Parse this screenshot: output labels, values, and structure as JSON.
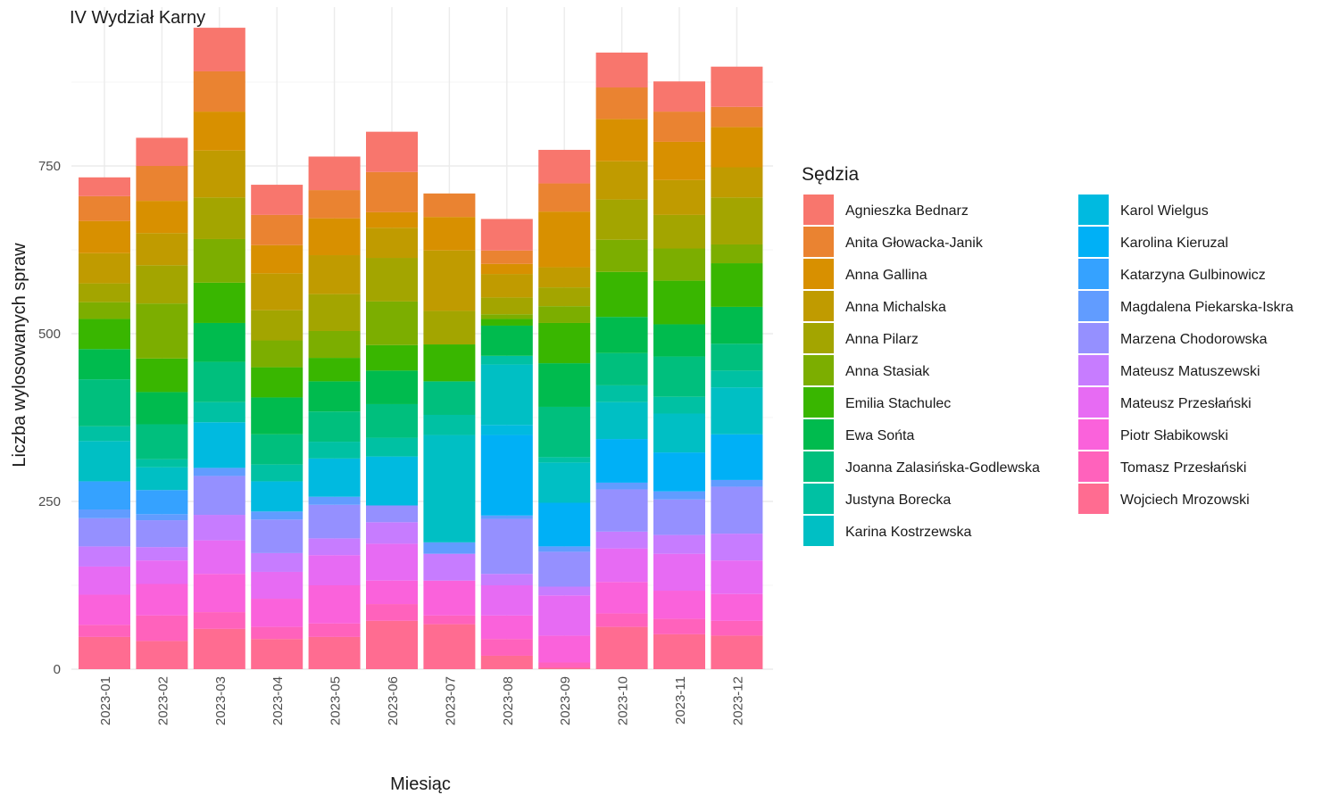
{
  "chart_data": {
    "type": "bar",
    "stacked": true,
    "title": "IV Wydział Karny",
    "xlabel": "Miesiąc",
    "ylabel": "Liczba wylosowanych spraw",
    "ylim": [
      0,
      980
    ],
    "yticks": [
      0,
      250,
      500,
      750
    ],
    "grid": true,
    "legend_title": "Sędzia",
    "legend_position": "right",
    "categories": [
      "2023-01",
      "2023-02",
      "2023-03",
      "2023-04",
      "2023-05",
      "2023-06",
      "2023-07",
      "2023-08",
      "2023-09",
      "2023-10",
      "2023-11",
      "2023-12"
    ],
    "series": [
      {
        "name": "Agnieszka Bednarz",
        "color": "#F8766D",
        "values": [
          28,
          42,
          65,
          45,
          50,
          60,
          0,
          47,
          50,
          52,
          45,
          60
        ]
      },
      {
        "name": "Anita Głowacka-Janik",
        "color": "#EA8331",
        "values": [
          37,
          52,
          60,
          45,
          42,
          60,
          35,
          20,
          42,
          47,
          45,
          30
        ]
      },
      {
        "name": "Anna Gallina",
        "color": "#D89000",
        "values": [
          48,
          48,
          58,
          42,
          55,
          23,
          50,
          15,
          83,
          63,
          57,
          60
        ]
      },
      {
        "name": "Anna Michalska",
        "color": "#C09B00",
        "values": [
          45,
          48,
          70,
          55,
          58,
          45,
          90,
          35,
          30,
          57,
          52,
          45
        ]
      },
      {
        "name": "Anna Pilarz",
        "color": "#A3A500",
        "values": [
          28,
          57,
          62,
          45,
          55,
          65,
          50,
          25,
          28,
          60,
          50,
          70
        ]
      },
      {
        "name": "Anna Stasiak",
        "color": "#7CAE00",
        "values": [
          25,
          82,
          65,
          40,
          40,
          65,
          0,
          7,
          25,
          48,
          48,
          28
        ]
      },
      {
        "name": "Emilia Stachulec",
        "color": "#39B600",
        "values": [
          45,
          50,
          60,
          45,
          35,
          38,
          55,
          10,
          60,
          67,
          65,
          65
        ]
      },
      {
        "name": "Ewa Sońta",
        "color": "#00BB4E",
        "values": [
          45,
          48,
          58,
          55,
          45,
          50,
          0,
          45,
          65,
          54,
          48,
          55
        ]
      },
      {
        "name": "Joanna Zalasińska-Godlewska",
        "color": "#00BF7D",
        "values": [
          70,
          52,
          60,
          45,
          45,
          50,
          50,
          0,
          75,
          48,
          60,
          40
        ]
      },
      {
        "name": "Justyna Borecka",
        "color": "#00C1A3",
        "values": [
          22,
          12,
          30,
          25,
          25,
          28,
          30,
          13,
          8,
          25,
          25,
          25
        ]
      },
      {
        "name": "Karina Kostrzewska",
        "color": "#00BFC4",
        "values": [
          60,
          34,
          0,
          0,
          0,
          0,
          160,
          90,
          60,
          55,
          58,
          70
        ]
      },
      {
        "name": "Karol Wielgus",
        "color": "#00BAE0",
        "values": [
          0,
          0,
          68,
          45,
          57,
          73,
          0,
          15,
          0,
          0,
          0,
          0
        ]
      },
      {
        "name": "Karolina Kieruzal",
        "color": "#00B0F6",
        "values": [
          0,
          0,
          0,
          0,
          0,
          0,
          0,
          120,
          65,
          65,
          58,
          68
        ]
      },
      {
        "name": "Katarzyna Gulbinowicz",
        "color": "#35A2FF",
        "values": [
          42,
          36,
          0,
          0,
          0,
          0,
          0,
          0,
          0,
          0,
          0,
          0
        ]
      },
      {
        "name": "Magdalena Piekarska-Iskra",
        "color": "#619CFF",
        "values": [
          13,
          9,
          12,
          12,
          12,
          0,
          17,
          5,
          8,
          10,
          12,
          10
        ]
      },
      {
        "name": "Marzena Chodorowska",
        "color": "#9590FF",
        "values": [
          42,
          40,
          58,
          50,
          50,
          25,
          0,
          82,
          52,
          63,
          53,
          70
        ]
      },
      {
        "name": "Mateusz Matuszewski",
        "color": "#C77CFF",
        "values": [
          30,
          20,
          38,
          28,
          25,
          32,
          40,
          17,
          13,
          25,
          28,
          40
        ]
      },
      {
        "name": "Mateusz Przesłański",
        "color": "#E76BF3",
        "values": [
          42,
          35,
          50,
          40,
          45,
          55,
          0,
          45,
          60,
          50,
          55,
          50
        ]
      },
      {
        "name": "Piotr Słabikowski",
        "color": "#FA62DB",
        "values": [
          45,
          47,
          57,
          42,
          57,
          35,
          52,
          35,
          40,
          47,
          42,
          40
        ]
      },
      {
        "name": "Tomasz Przesłański",
        "color": "#FF62BC",
        "values": [
          18,
          38,
          25,
          18,
          20,
          25,
          13,
          25,
          8,
          20,
          23,
          22
        ]
      },
      {
        "name": "Wojciech Mrozowski",
        "color": "#FF6C91",
        "values": [
          48,
          42,
          60,
          45,
          48,
          72,
          67,
          20,
          2,
          63,
          52,
          50
        ]
      }
    ]
  }
}
